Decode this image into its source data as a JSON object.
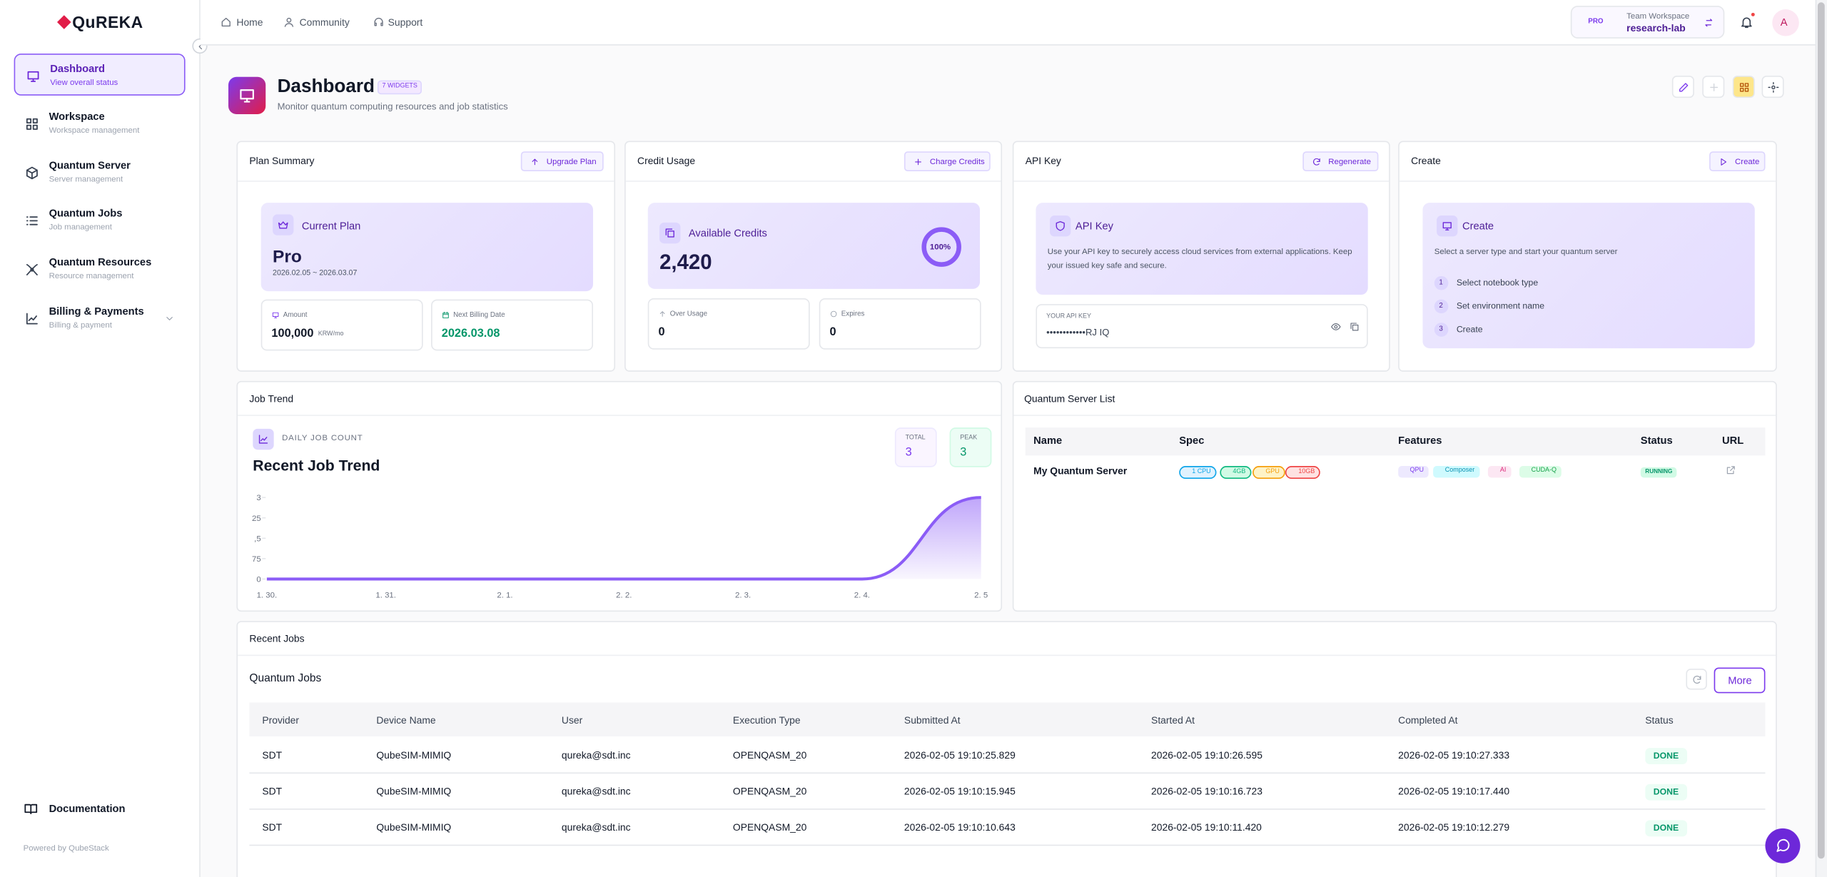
{
  "sidebar": {
    "logo": "QuREKA",
    "nav": [
      {
        "title": "Dashboard",
        "sub": "View overall status"
      },
      {
        "title": "Workspace",
        "sub": "Workspace management"
      },
      {
        "title": "Quantum Server",
        "sub": "Server management"
      },
      {
        "title": "Quantum Jobs",
        "sub": "Job management"
      },
      {
        "title": "Quantum Resources",
        "sub": "Resource management"
      },
      {
        "title": "Billing & Payments",
        "sub": "Billing & payment"
      }
    ],
    "documentation": "Documentation",
    "powered": "Powered by QubeStack"
  },
  "topnav": {
    "links": [
      "Home",
      "Community",
      "Support"
    ],
    "badge": "PRO",
    "workspace_label": "Team Workspace",
    "workspace_name": "research-lab",
    "avatar": "A"
  },
  "header": {
    "title": "Dashboard",
    "widgets": "7 WIDGETS",
    "subtitle": "Monitor quantum computing resources and job statistics"
  },
  "plan": {
    "title": "Plan Summary",
    "button": "Upgrade Plan",
    "card_title": "Current Plan",
    "plan": "Pro",
    "period": "2026.02.05 ~ 2026.03.07",
    "amount_label": "Amount",
    "amount": "100,000",
    "amount_unit": "KRW/mo",
    "billing_label": "Next Billing Date",
    "billing_date": "2026.03.08"
  },
  "credit": {
    "title": "Credit Usage",
    "button": "Charge Credits",
    "card_title": "Available Credits",
    "credits": "2,420",
    "progress": {
      "value": 100,
      "label": "100%"
    },
    "over_label": "Over Usage",
    "over": 0,
    "expires_label": "Expires",
    "expires": 0
  },
  "api": {
    "title": "API Key",
    "button": "Regenerate",
    "card_title": "API Key",
    "description": "Use your API key to securely access cloud services from external applications. Keep your issued key safe and secure.",
    "key_label": "YOUR API KEY",
    "key": "••••••••••••RJ IQ"
  },
  "create": {
    "title": "Create",
    "button": "Create",
    "card_title": "Create",
    "description": "Select a server type and start your quantum server",
    "steps": [
      {
        "n": 1,
        "label": "Select notebook type"
      },
      {
        "n": 2,
        "label": "Set environment name"
      },
      {
        "n": 3,
        "label": "Create"
      }
    ]
  },
  "job_trend": {
    "title": "Job Trend",
    "label": "DAILY JOB COUNT",
    "heading": "Recent Job Trend",
    "total_label": "TOTAL",
    "total": 3,
    "peak_label": "PEAK",
    "peak": 3,
    "type": "line",
    "categories": [
      "1. 30.",
      "1. 31.",
      "2. 1.",
      "2. 2.",
      "2. 3.",
      "2. 4.",
      "2. 5"
    ],
    "values": [
      0,
      0,
      0,
      0,
      0,
      0,
      3
    ],
    "ylim": [
      0,
      3
    ],
    "yticks": [
      0,
      {
        "value": 0.75,
        "label": "75"
      },
      {
        "value": 1.5,
        "label": ",5"
      },
      {
        "value": 2.25,
        "label": "25"
      },
      3
    ],
    "color": "#8b5cf6"
  },
  "server_list": {
    "title": "Quantum Server List",
    "columns": [
      "Name",
      "Spec",
      "Features",
      "Status",
      "URL"
    ],
    "rows": [
      {
        "name": "My Quantum Server",
        "spec": [
          "1 CPU",
          "4GB",
          "GPU",
          "10GB"
        ],
        "features": [
          "QPU",
          "Composer",
          "AI",
          "CUDA-Q"
        ],
        "status": "RUNNING"
      }
    ]
  },
  "recent_jobs": {
    "title": "Recent Jobs",
    "subtitle": "Quantum Jobs",
    "more": "More",
    "columns": [
      "Provider",
      "Device Name",
      "User",
      "Execution Type",
      "Submitted At",
      "Started At",
      "Completed At",
      "Status"
    ],
    "rows": [
      [
        "SDT",
        "QubeSIM-MIMIQ",
        "qureka@sdt.inc",
        "OPENQASM_20",
        "2026-02-05 19:10:25.829",
        "2026-02-05 19:10:26.595",
        "2026-02-05 19:10:27.333",
        "DONE"
      ],
      [
        "SDT",
        "QubeSIM-MIMIQ",
        "qureka@sdt.inc",
        "OPENQASM_20",
        "2026-02-05 19:10:15.945",
        "2026-02-05 19:10:16.723",
        "2026-02-05 19:10:17.440",
        "DONE"
      ],
      [
        "SDT",
        "QubeSIM-MIMIQ",
        "qureka@sdt.inc",
        "OPENQASM_20",
        "2026-02-05 19:10:10.643",
        "2026-02-05 19:10:11.420",
        "2026-02-05 19:10:12.279",
        "DONE"
      ]
    ]
  }
}
